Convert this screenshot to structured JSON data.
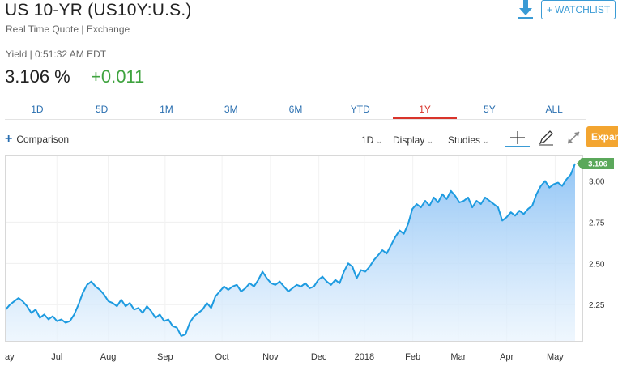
{
  "header": {
    "title": "US 10-YR (US10Y:U.S.)",
    "subtitle": "Real Time Quote | Exchange",
    "yield_line": "Yield | 0:51:32 AM EDT",
    "price": "3.106 %",
    "change": "+0.011",
    "watchlist_label": "+ WATCHLIST"
  },
  "colors": {
    "accent": "#3a9bd5",
    "positive": "#3fa33f",
    "active_tab": "#d9342b",
    "expand": "#f3a530",
    "line": "#1e9be0",
    "last_badge": "#5ba85b"
  },
  "tabs": [
    {
      "label": "1D"
    },
    {
      "label": "5D"
    },
    {
      "label": "1M"
    },
    {
      "label": "3M"
    },
    {
      "label": "6M"
    },
    {
      "label": "YTD"
    },
    {
      "label": "1Y",
      "active": true
    },
    {
      "label": "5Y"
    },
    {
      "label": "ALL"
    }
  ],
  "toolbar": {
    "comparison_label": "Comparison",
    "interval_label": "1D",
    "display_label": "Display",
    "studies_label": "Studies",
    "expand_label": "Expand"
  },
  "icons": [
    "download-icon",
    "plus-icon",
    "crosshair-icon",
    "pencil-icon",
    "expand-arrows-icon"
  ],
  "chart_data": {
    "type": "area",
    "y_ticks": [
      "3.00",
      "2.75",
      "2.50",
      "2.25"
    ],
    "y_tick_values": [
      3.0,
      2.75,
      2.5,
      2.25
    ],
    "x_labels": [
      "ay",
      "Jul",
      "Aug",
      "Sep",
      "Oct",
      "Nov",
      "Dec",
      "2018",
      "Feb",
      "Mar",
      "Apr",
      "May"
    ],
    "x_label_positions": [
      0.0,
      0.09,
      0.18,
      0.28,
      0.38,
      0.465,
      0.55,
      0.63,
      0.715,
      0.795,
      0.88,
      0.965
    ],
    "ylim": [
      2.03,
      3.15
    ],
    "last_value": "3.106",
    "series": [
      {
        "values": [
          2.22,
          2.25,
          2.27,
          2.29,
          2.27,
          2.24,
          2.2,
          2.22,
          2.17,
          2.19,
          2.16,
          2.18,
          2.15,
          2.16,
          2.14,
          2.15,
          2.19,
          2.25,
          2.32,
          2.37,
          2.39,
          2.36,
          2.34,
          2.31,
          2.27,
          2.26,
          2.24,
          2.28,
          2.24,
          2.26,
          2.22,
          2.23,
          2.2,
          2.24,
          2.21,
          2.17,
          2.19,
          2.15,
          2.16,
          2.12,
          2.11,
          2.06,
          2.07,
          2.14,
          2.18,
          2.2,
          2.22,
          2.26,
          2.23,
          2.3,
          2.33,
          2.36,
          2.34,
          2.36,
          2.37,
          2.33,
          2.35,
          2.38,
          2.36,
          2.4,
          2.45,
          2.41,
          2.38,
          2.37,
          2.39,
          2.36,
          2.33,
          2.35,
          2.37,
          2.36,
          2.38,
          2.35,
          2.36,
          2.4,
          2.42,
          2.39,
          2.37,
          2.4,
          2.38,
          2.45,
          2.5,
          2.48,
          2.41,
          2.46,
          2.45,
          2.48,
          2.52,
          2.55,
          2.58,
          2.56,
          2.61,
          2.66,
          2.7,
          2.68,
          2.74,
          2.83,
          2.86,
          2.84,
          2.88,
          2.85,
          2.9,
          2.87,
          2.92,
          2.89,
          2.94,
          2.91,
          2.87,
          2.88,
          2.9,
          2.84,
          2.88,
          2.86,
          2.9,
          2.88,
          2.86,
          2.84,
          2.76,
          2.78,
          2.81,
          2.79,
          2.82,
          2.8,
          2.83,
          2.85,
          2.92,
          2.97,
          3.0,
          2.96,
          2.98,
          2.99,
          2.97,
          3.01,
          3.04,
          3.106
        ]
      }
    ],
    "grid": true
  }
}
